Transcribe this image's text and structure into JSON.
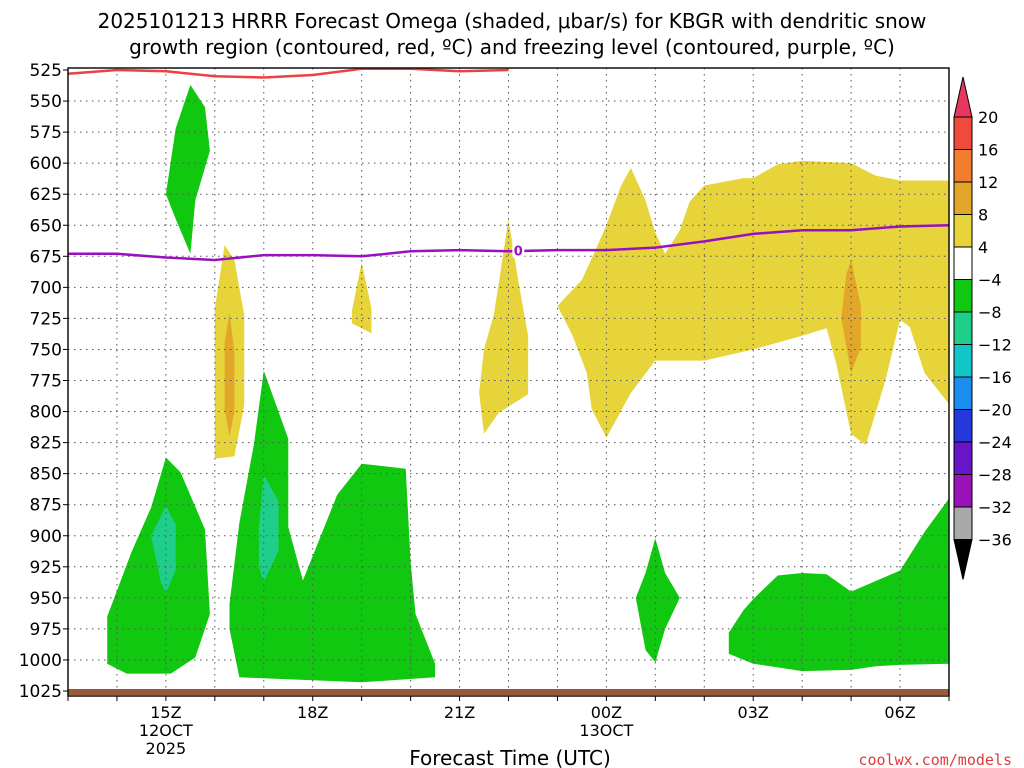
{
  "chart_data": {
    "type": "heatmap",
    "title_line1": "2025101213 HRRR Forecast Omega (shaded, μbar/s) for KBGR with dendritic snow",
    "title_line2": "growth region (contoured, red, ºC) and freezing level (contoured, purple, ºC)",
    "xlabel": "Forecast Time (UTC)",
    "credit": "coolwx.com/models",
    "x_range_hours": [
      13,
      31
    ],
    "y_range_mb": [
      1025,
      525
    ],
    "y_ticks": [
      525,
      550,
      575,
      600,
      625,
      650,
      675,
      700,
      725,
      750,
      775,
      800,
      825,
      850,
      875,
      900,
      925,
      950,
      975,
      1000,
      1025
    ],
    "x_ticks": [
      {
        "hour": 15,
        "label": "15Z",
        "sub1": "12OCT",
        "sub2": "2025"
      },
      {
        "hour": 18,
        "label": "18Z",
        "sub1": "",
        "sub2": ""
      },
      {
        "hour": 21,
        "label": "21Z",
        "sub1": "",
        "sub2": ""
      },
      {
        "hour": 24,
        "label": "00Z",
        "sub1": "13OCT",
        "sub2": ""
      },
      {
        "hour": 27,
        "label": "03Z",
        "sub1": "",
        "sub2": ""
      },
      {
        "hour": 30,
        "label": "06Z",
        "sub1": "",
        "sub2": ""
      }
    ],
    "colorbar": {
      "levels": [
        "20",
        "16",
        "12",
        "8",
        "4",
        "−4",
        "−8",
        "−12",
        "−16",
        "−20",
        "−24",
        "−28",
        "−32",
        "−36"
      ],
      "colors": [
        "#e8375f",
        "#f04a3c",
        "#f07e2c",
        "#e2a629",
        "#e6d43a",
        "#ffffff",
        "#10c810",
        "#1ecf8c",
        "#11c6c8",
        "#1a8fef",
        "#2438dc",
        "#6816c8",
        "#9a12b8",
        "#a9a9a9",
        "#000000"
      ]
    },
    "freezing_level_label": "0",
    "freezing_level": [
      [
        13,
        673
      ],
      [
        14,
        673
      ],
      [
        15,
        676
      ],
      [
        16,
        678
      ],
      [
        17,
        674
      ],
      [
        18,
        674
      ],
      [
        19,
        675
      ],
      [
        20,
        671
      ],
      [
        21,
        670
      ],
      [
        22,
        671
      ],
      [
        23,
        670
      ],
      [
        24,
        670
      ],
      [
        25,
        668
      ],
      [
        26,
        663
      ],
      [
        27,
        657
      ],
      [
        28,
        654
      ],
      [
        29,
        654
      ],
      [
        30,
        651
      ],
      [
        31,
        650
      ]
    ],
    "dgz_contour": [
      [
        13,
        528
      ],
      [
        14,
        525
      ],
      [
        15,
        526
      ],
      [
        16,
        530
      ],
      [
        17,
        531
      ],
      [
        18,
        529
      ],
      [
        19,
        524
      ],
      [
        20,
        524
      ],
      [
        21,
        526
      ],
      [
        22,
        525
      ]
    ],
    "omega_regions": [
      {
        "value": -6,
        "points": [
          [
            15,
            625
          ],
          [
            15.2,
            572
          ],
          [
            15.5,
            537
          ],
          [
            15.8,
            555
          ],
          [
            15.9,
            590
          ],
          [
            15.6,
            630
          ],
          [
            15.5,
            673
          ],
          [
            15.2,
            645
          ],
          [
            15,
            625
          ]
        ]
      },
      {
        "value": 6,
        "points": [
          [
            16,
            717
          ],
          [
            16.2,
            666
          ],
          [
            16.4,
            678
          ],
          [
            16.6,
            722
          ],
          [
            16.6,
            795
          ],
          [
            16.4,
            836
          ],
          [
            16,
            838
          ],
          [
            16,
            782
          ],
          [
            16,
            717
          ]
        ]
      },
      {
        "value": 9,
        "points": [
          [
            16.2,
            745
          ],
          [
            16.3,
            720
          ],
          [
            16.4,
            752
          ],
          [
            16.4,
            800
          ],
          [
            16.3,
            820
          ],
          [
            16.2,
            798
          ],
          [
            16.2,
            745
          ]
        ]
      },
      {
        "value": 6,
        "points": [
          [
            18.8,
            719
          ],
          [
            19,
            680
          ],
          [
            19.2,
            717
          ],
          [
            19.2,
            737
          ],
          [
            18.8,
            729
          ],
          [
            18.8,
            719
          ]
        ]
      },
      {
        "value": -6,
        "points": [
          [
            13.8,
            965
          ],
          [
            14.3,
            913
          ],
          [
            14.7,
            877
          ],
          [
            15,
            837
          ],
          [
            15.3,
            849
          ],
          [
            15.8,
            895
          ],
          [
            15.9,
            963
          ],
          [
            15.6,
            998
          ],
          [
            15.1,
            1011
          ],
          [
            14.2,
            1011
          ],
          [
            13.8,
            1003
          ],
          [
            13.8,
            965
          ]
        ]
      },
      {
        "value": -10,
        "points": [
          [
            14.7,
            900
          ],
          [
            15,
            876
          ],
          [
            15.2,
            891
          ],
          [
            15.2,
            928
          ],
          [
            15,
            946
          ],
          [
            14.9,
            938
          ],
          [
            14.7,
            900
          ]
        ]
      },
      {
        "value": -6,
        "points": [
          [
            16.3,
            955
          ],
          [
            16.5,
            890
          ],
          [
            16.8,
            826
          ],
          [
            17,
            767
          ],
          [
            17.5,
            822
          ],
          [
            17.5,
            893
          ],
          [
            17.8,
            936
          ],
          [
            18.5,
            867
          ],
          [
            19,
            842
          ],
          [
            19.9,
            846
          ],
          [
            20,
            921
          ],
          [
            20.1,
            963
          ],
          [
            20.5,
            1003
          ],
          [
            20.5,
            1014
          ],
          [
            19,
            1018
          ],
          [
            16.5,
            1014
          ],
          [
            16.3,
            975
          ],
          [
            16.3,
            955
          ]
        ]
      },
      {
        "value": -10,
        "points": [
          [
            16.9,
            893
          ],
          [
            17,
            851
          ],
          [
            17.3,
            872
          ],
          [
            17.3,
            912
          ],
          [
            17,
            937
          ],
          [
            16.9,
            925
          ],
          [
            16.9,
            893
          ]
        ]
      },
      {
        "value": 6,
        "points": [
          [
            21.4,
            785
          ],
          [
            21.5,
            750
          ],
          [
            21.7,
            722
          ],
          [
            21.8,
            697
          ],
          [
            22,
            645
          ],
          [
            22.2,
            695
          ],
          [
            22.4,
            739
          ],
          [
            22.4,
            786
          ],
          [
            21.8,
            801
          ],
          [
            21.5,
            818
          ],
          [
            21.4,
            785
          ]
        ]
      },
      {
        "value": 6,
        "points": [
          [
            23,
            715
          ],
          [
            23.5,
            694
          ],
          [
            23.8,
            668
          ],
          [
            24,
            650
          ],
          [
            24.3,
            618
          ],
          [
            24.5,
            604
          ],
          [
            24.8,
            630
          ],
          [
            25,
            656
          ],
          [
            25.2,
            673
          ],
          [
            25.5,
            654
          ],
          [
            25.7,
            631
          ],
          [
            26,
            618
          ],
          [
            26.8,
            612
          ],
          [
            27,
            612
          ],
          [
            27.5,
            601
          ],
          [
            28,
            598
          ],
          [
            29,
            600
          ],
          [
            29.5,
            610
          ],
          [
            30,
            614
          ],
          [
            31,
            614
          ],
          [
            31,
            794
          ],
          [
            30.5,
            769
          ],
          [
            30.2,
            732
          ],
          [
            30,
            726
          ],
          [
            29.7,
            775
          ],
          [
            29.3,
            827
          ],
          [
            29,
            818
          ],
          [
            28.7,
            762
          ],
          [
            28.5,
            733
          ],
          [
            28,
            739
          ],
          [
            27,
            750
          ],
          [
            26,
            759
          ],
          [
            25,
            759
          ],
          [
            24.5,
            785
          ],
          [
            24,
            821
          ],
          [
            23.7,
            798
          ],
          [
            23.6,
            769
          ],
          [
            23.3,
            738
          ],
          [
            23,
            715
          ]
        ]
      },
      {
        "value": 9,
        "points": [
          [
            28.8,
            725
          ],
          [
            28.9,
            690
          ],
          [
            29,
            678
          ],
          [
            29.2,
            715
          ],
          [
            29.2,
            748
          ],
          [
            29,
            769
          ],
          [
            28.8,
            725
          ]
        ]
      },
      {
        "value": -6,
        "points": [
          [
            24.6,
            950
          ],
          [
            24.8,
            930
          ],
          [
            25,
            902
          ],
          [
            25.2,
            930
          ],
          [
            25.5,
            950
          ],
          [
            25.2,
            975
          ],
          [
            25,
            1002
          ],
          [
            24.8,
            992
          ],
          [
            24.6,
            950
          ]
        ]
      },
      {
        "value": -6,
        "points": [
          [
            26.5,
            978
          ],
          [
            26.8,
            960
          ],
          [
            27,
            951
          ],
          [
            27.5,
            932
          ],
          [
            28,
            930
          ],
          [
            28.5,
            931
          ],
          [
            29,
            945
          ],
          [
            30,
            928
          ],
          [
            30.5,
            897
          ],
          [
            31,
            870
          ],
          [
            31,
            1003
          ],
          [
            30,
            1004
          ],
          [
            29.5,
            1005
          ],
          [
            29,
            1008
          ],
          [
            28,
            1009
          ],
          [
            27,
            1003
          ],
          [
            26.5,
            995
          ],
          [
            26.5,
            978
          ]
        ]
      }
    ]
  }
}
